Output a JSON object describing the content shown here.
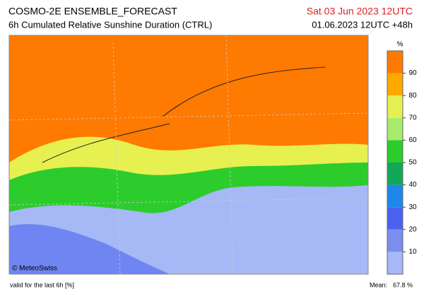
{
  "header": {
    "title": "COSMO-2E ENSEMBLE_FORECAST",
    "subtitle": "6h Cumulated Relative Sunshine Duration (CTRL)",
    "valid_time": "Sat 03 Jun 2023 12UTC",
    "init_time": "01.06.2023 12UTC +48h"
  },
  "map": {
    "credit": "© MeteoSwiss"
  },
  "colorbar": {
    "unit": "%",
    "range": [
      0,
      100
    ],
    "ticks": [
      10,
      20,
      30,
      40,
      50,
      60,
      70,
      80,
      90
    ],
    "colors": [
      "#a6b8f5",
      "#7b8ef0",
      "#4a62f0",
      "#1f86ea",
      "#12a85a",
      "#2ccc2c",
      "#a8ec6e",
      "#e6f050",
      "#ffa800",
      "#ff7a00"
    ]
  },
  "footer": {
    "note": "valid for the last 6h [%]",
    "mean_label": "Mean:",
    "mean": "67.8 %"
  }
}
